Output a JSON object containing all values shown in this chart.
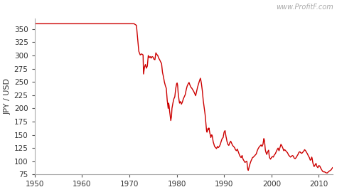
{
  "watermark": "www.ProfitF.com",
  "ylabel": "JPY / USD",
  "line_color": "#cc0000",
  "line_width": 1.0,
  "background_color": "#ffffff",
  "xlim": [
    1950,
    2013
  ],
  "ylim": [
    75,
    370
  ],
  "xticks": [
    1950,
    1960,
    1970,
    1980,
    1990,
    2000,
    2010
  ],
  "yticks": [
    75,
    100,
    125,
    150,
    175,
    200,
    225,
    250,
    275,
    300,
    325,
    350
  ],
  "series": [
    [
      1950,
      360
    ],
    [
      1951,
      360
    ],
    [
      1952,
      360
    ],
    [
      1953,
      360
    ],
    [
      1954,
      360
    ],
    [
      1955,
      360
    ],
    [
      1956,
      360
    ],
    [
      1957,
      360
    ],
    [
      1958,
      360
    ],
    [
      1959,
      360
    ],
    [
      1960,
      360
    ],
    [
      1961,
      360
    ],
    [
      1962,
      360
    ],
    [
      1963,
      360
    ],
    [
      1964,
      360
    ],
    [
      1965,
      360
    ],
    [
      1966,
      360
    ],
    [
      1967,
      360
    ],
    [
      1968,
      360
    ],
    [
      1969,
      360
    ],
    [
      1970,
      360
    ],
    [
      1971,
      360
    ],
    [
      1971.5,
      357
    ],
    [
      1972.0,
      308
    ],
    [
      1972.3,
      301
    ],
    [
      1972.6,
      303
    ],
    [
      1972.9,
      301
    ],
    [
      1973.0,
      265
    ],
    [
      1973.1,
      272
    ],
    [
      1973.2,
      278
    ],
    [
      1973.4,
      283
    ],
    [
      1973.6,
      276
    ],
    [
      1973.8,
      280
    ],
    [
      1974.0,
      300
    ],
    [
      1974.2,
      296
    ],
    [
      1974.4,
      298
    ],
    [
      1974.6,
      295
    ],
    [
      1974.8,
      298
    ],
    [
      1975.0,
      297
    ],
    [
      1975.2,
      293
    ],
    [
      1975.4,
      292
    ],
    [
      1975.6,
      305
    ],
    [
      1975.8,
      302
    ],
    [
      1976.0,
      300
    ],
    [
      1976.2,
      295
    ],
    [
      1976.4,
      292
    ],
    [
      1976.6,
      288
    ],
    [
      1976.8,
      285
    ],
    [
      1977.0,
      268
    ],
    [
      1977.2,
      260
    ],
    [
      1977.4,
      250
    ],
    [
      1977.6,
      243
    ],
    [
      1977.8,
      238
    ],
    [
      1978.0,
      215
    ],
    [
      1978.1,
      207
    ],
    [
      1978.2,
      200
    ],
    [
      1978.3,
      210
    ],
    [
      1978.4,
      205
    ],
    [
      1978.5,
      195
    ],
    [
      1978.6,
      188
    ],
    [
      1978.75,
      177
    ],
    [
      1978.9,
      185
    ],
    [
      1979.0,
      200
    ],
    [
      1979.2,
      210
    ],
    [
      1979.4,
      218
    ],
    [
      1979.6,
      222
    ],
    [
      1979.8,
      238
    ],
    [
      1980.0,
      247
    ],
    [
      1980.1,
      248
    ],
    [
      1980.2,
      243
    ],
    [
      1980.3,
      230
    ],
    [
      1980.4,
      222
    ],
    [
      1980.5,
      215
    ],
    [
      1980.6,
      210
    ],
    [
      1980.8,
      213
    ],
    [
      1981.0,
      208
    ],
    [
      1981.2,
      212
    ],
    [
      1981.4,
      218
    ],
    [
      1981.6,
      222
    ],
    [
      1981.8,
      226
    ],
    [
      1982.0,
      235
    ],
    [
      1982.2,
      242
    ],
    [
      1982.4,
      246
    ],
    [
      1982.6,
      249
    ],
    [
      1982.8,
      244
    ],
    [
      1983.0,
      240
    ],
    [
      1983.2,
      238
    ],
    [
      1983.4,
      235
    ],
    [
      1983.6,
      232
    ],
    [
      1983.8,
      228
    ],
    [
      1984.0,
      224
    ],
    [
      1984.2,
      232
    ],
    [
      1984.4,
      240
    ],
    [
      1984.6,
      246
    ],
    [
      1984.8,
      252
    ],
    [
      1985.0,
      257
    ],
    [
      1985.1,
      253
    ],
    [
      1985.2,
      248
    ],
    [
      1985.3,
      241
    ],
    [
      1985.4,
      234
    ],
    [
      1985.6,
      215
    ],
    [
      1985.8,
      202
    ],
    [
      1986.0,
      188
    ],
    [
      1986.1,
      178
    ],
    [
      1986.2,
      168
    ],
    [
      1986.3,
      158
    ],
    [
      1986.4,
      155
    ],
    [
      1986.5,
      158
    ],
    [
      1986.6,
      162
    ],
    [
      1986.7,
      160
    ],
    [
      1986.8,
      163
    ],
    [
      1987.0,
      153
    ],
    [
      1987.1,
      150
    ],
    [
      1987.2,
      145
    ],
    [
      1987.3,
      148
    ],
    [
      1987.4,
      150
    ],
    [
      1987.5,
      148
    ],
    [
      1987.6,
      142
    ],
    [
      1987.7,
      137
    ],
    [
      1987.8,
      134
    ],
    [
      1988.0,
      128
    ],
    [
      1988.2,
      126
    ],
    [
      1988.4,
      124
    ],
    [
      1988.6,
      128
    ],
    [
      1988.8,
      126
    ],
    [
      1989.0,
      128
    ],
    [
      1989.2,
      132
    ],
    [
      1989.4,
      138
    ],
    [
      1989.6,
      143
    ],
    [
      1989.8,
      145
    ],
    [
      1990.0,
      155
    ],
    [
      1990.2,
      158
    ],
    [
      1990.3,
      153
    ],
    [
      1990.4,
      147
    ],
    [
      1990.5,
      143
    ],
    [
      1990.6,
      138
    ],
    [
      1990.8,
      132
    ],
    [
      1991.0,
      130
    ],
    [
      1991.2,
      135
    ],
    [
      1991.4,
      138
    ],
    [
      1991.6,
      134
    ],
    [
      1991.8,
      130
    ],
    [
      1992.0,
      128
    ],
    [
      1992.2,
      126
    ],
    [
      1992.4,
      122
    ],
    [
      1992.6,
      120
    ],
    [
      1992.8,
      123
    ],
    [
      1993.0,
      118
    ],
    [
      1993.2,
      113
    ],
    [
      1993.4,
      109
    ],
    [
      1993.6,
      107
    ],
    [
      1993.8,
      111
    ],
    [
      1994.0,
      104
    ],
    [
      1994.2,
      101
    ],
    [
      1994.4,
      98
    ],
    [
      1994.6,
      99
    ],
    [
      1994.8,
      100
    ],
    [
      1995.0,
      85
    ],
    [
      1995.1,
      83
    ],
    [
      1995.2,
      86
    ],
    [
      1995.3,
      90
    ],
    [
      1995.5,
      96
    ],
    [
      1995.7,
      101
    ],
    [
      1996.0,
      107
    ],
    [
      1996.2,
      108
    ],
    [
      1996.4,
      110
    ],
    [
      1996.6,
      112
    ],
    [
      1996.8,
      114
    ],
    [
      1997.0,
      120
    ],
    [
      1997.2,
      124
    ],
    [
      1997.4,
      127
    ],
    [
      1997.6,
      129
    ],
    [
      1997.8,
      131
    ],
    [
      1998.0,
      128
    ],
    [
      1998.2,
      132
    ],
    [
      1998.3,
      138
    ],
    [
      1998.4,
      143
    ],
    [
      1998.5,
      140
    ],
    [
      1998.6,
      132
    ],
    [
      1998.7,
      122
    ],
    [
      1998.8,
      118
    ],
    [
      1999.0,
      113
    ],
    [
      1999.2,
      118
    ],
    [
      1999.4,
      121
    ],
    [
      1999.5,
      112
    ],
    [
      1999.6,
      107
    ],
    [
      1999.8,
      104
    ],
    [
      2000.0,
      107
    ],
    [
      2000.2,
      109
    ],
    [
      2000.4,
      108
    ],
    [
      2000.6,
      112
    ],
    [
      2000.8,
      114
    ],
    [
      2001.0,
      118
    ],
    [
      2001.2,
      122
    ],
    [
      2001.4,
      125
    ],
    [
      2001.5,
      122
    ],
    [
      2001.6,
      120
    ],
    [
      2001.8,
      126
    ],
    [
      2002.0,
      132
    ],
    [
      2002.2,
      129
    ],
    [
      2002.4,
      125
    ],
    [
      2002.6,
      120
    ],
    [
      2002.8,
      122
    ],
    [
      2003.0,
      120
    ],
    [
      2003.2,
      118
    ],
    [
      2003.4,
      116
    ],
    [
      2003.6,
      112
    ],
    [
      2003.8,
      110
    ],
    [
      2004.0,
      108
    ],
    [
      2004.2,
      109
    ],
    [
      2004.4,
      111
    ],
    [
      2004.6,
      110
    ],
    [
      2004.8,
      106
    ],
    [
      2005.0,
      105
    ],
    [
      2005.2,
      107
    ],
    [
      2005.4,
      110
    ],
    [
      2005.6,
      113
    ],
    [
      2005.8,
      117
    ],
    [
      2006.0,
      118
    ],
    [
      2006.2,
      116
    ],
    [
      2006.4,
      115
    ],
    [
      2006.6,
      117
    ],
    [
      2006.8,
      119
    ],
    [
      2007.0,
      122
    ],
    [
      2007.2,
      120
    ],
    [
      2007.4,
      117
    ],
    [
      2007.6,
      114
    ],
    [
      2007.8,
      110
    ],
    [
      2008.0,
      107
    ],
    [
      2008.2,
      102
    ],
    [
      2008.4,
      104
    ],
    [
      2008.5,
      108
    ],
    [
      2008.6,
      105
    ],
    [
      2008.7,
      99
    ],
    [
      2008.8,
      95
    ],
    [
      2008.9,
      92
    ],
    [
      2009.0,
      90
    ],
    [
      2009.2,
      93
    ],
    [
      2009.4,
      96
    ],
    [
      2009.5,
      93
    ],
    [
      2009.6,
      90
    ],
    [
      2009.8,
      88
    ],
    [
      2010.0,
      92
    ],
    [
      2010.2,
      91
    ],
    [
      2010.4,
      87
    ],
    [
      2010.6,
      84
    ],
    [
      2010.8,
      81
    ],
    [
      2011.0,
      80
    ],
    [
      2011.2,
      80
    ],
    [
      2011.4,
      79
    ],
    [
      2011.6,
      78
    ],
    [
      2011.8,
      78
    ],
    [
      2012.0,
      80
    ],
    [
      2012.3,
      82
    ],
    [
      2012.6,
      84
    ],
    [
      2012.9,
      88
    ]
  ]
}
